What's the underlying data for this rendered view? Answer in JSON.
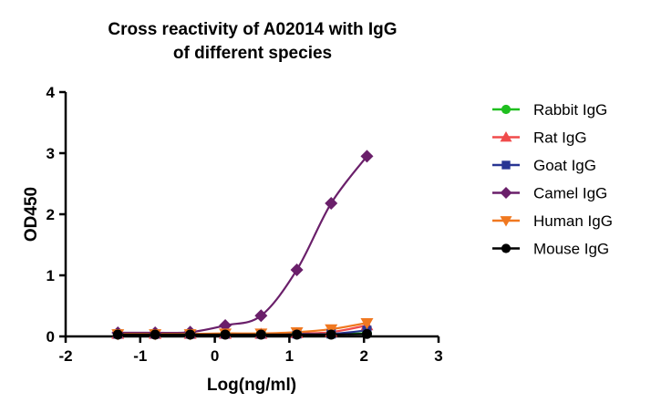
{
  "chart_data": {
    "type": "line",
    "title": [
      "Cross reactivity of A02014 with IgG",
      "of different species"
    ],
    "xlabel": "Log(ng/ml)",
    "ylabel": "OD450",
    "xlim": [
      -2,
      3
    ],
    "ylim": [
      0,
      4
    ],
    "xticks": [
      "-2",
      "-1",
      "0",
      "1",
      "2",
      "3"
    ],
    "yticks": [
      "0",
      "1",
      "2",
      "3",
      "4"
    ],
    "x": [
      -1.3,
      -0.8,
      -0.33,
      0.14,
      0.62,
      1.1,
      1.56,
      2.04
    ],
    "legend_position": "right",
    "series": [
      {
        "name": "Rabbit IgG",
        "color": "#1fbf1f",
        "marker": "circle",
        "values": [
          0.04,
          0.04,
          0.04,
          0.04,
          0.04,
          0.04,
          0.04,
          0.05
        ]
      },
      {
        "name": "Rat IgG",
        "color": "#f04b4b",
        "marker": "triangle",
        "values": [
          0.04,
          0.04,
          0.04,
          0.04,
          0.04,
          0.05,
          0.07,
          0.18
        ]
      },
      {
        "name": "Goat IgG",
        "color": "#283593",
        "marker": "square",
        "values": [
          0.04,
          0.04,
          0.04,
          0.04,
          0.04,
          0.04,
          0.04,
          0.1
        ]
      },
      {
        "name": "Camel IgG",
        "color": "#6a1f6a",
        "marker": "diamond",
        "values": [
          0.06,
          0.06,
          0.07,
          0.18,
          0.34,
          1.09,
          2.18,
          2.95
        ]
      },
      {
        "name": "Human IgG",
        "color": "#f07820",
        "marker": "triangle-down",
        "values": [
          0.04,
          0.04,
          0.04,
          0.05,
          0.05,
          0.07,
          0.12,
          0.22
        ]
      },
      {
        "name": "Mouse IgG",
        "color": "#000000",
        "marker": "circle",
        "values": [
          0.03,
          0.03,
          0.03,
          0.03,
          0.03,
          0.03,
          0.03,
          0.04
        ]
      }
    ]
  }
}
